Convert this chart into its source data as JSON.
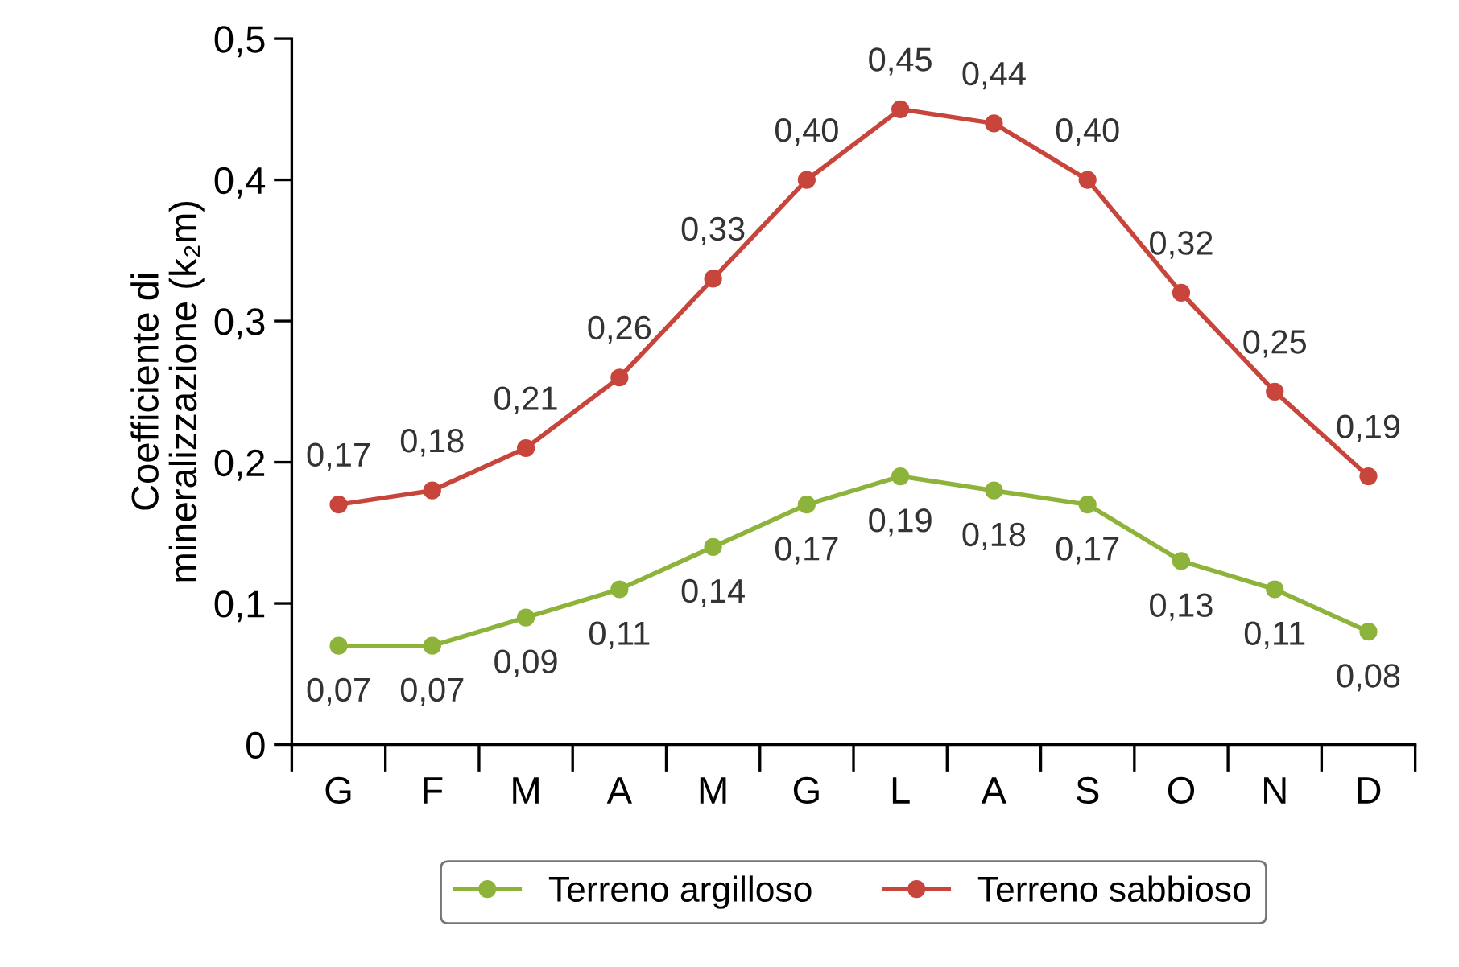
{
  "chart_data": {
    "type": "line",
    "ylabel": "Coefficiente di\nmineralizzazione (k₂m)",
    "categories": [
      "G",
      "F",
      "M",
      "A",
      "M",
      "G",
      "L",
      "A",
      "S",
      "O",
      "N",
      "D"
    ],
    "series": [
      {
        "name": "Terreno argilloso",
        "color": "#8db33a",
        "values": [
          0.07,
          0.07,
          0.09,
          0.11,
          0.14,
          0.17,
          0.19,
          0.18,
          0.17,
          0.13,
          0.11,
          0.08
        ],
        "value_labels": [
          "0,07",
          "0,07",
          "0,09",
          "0,11",
          "0,14",
          "0,17",
          "0,19",
          "0,18",
          "0,17",
          "0,13",
          "0,11",
          "0,08"
        ]
      },
      {
        "name": "Terreno sabbioso",
        "color": "#c8453c",
        "values": [
          0.17,
          0.18,
          0.21,
          0.26,
          0.33,
          0.4,
          0.45,
          0.44,
          0.4,
          0.32,
          0.25,
          0.19
        ],
        "value_labels": [
          "0,17",
          "0,18",
          "0,21",
          "0,26",
          "0,33",
          "0,40",
          "0,45",
          "0,44",
          "0,40",
          "0,32",
          "0,25",
          "0,19"
        ]
      }
    ],
    "ylim": [
      0,
      0.5
    ],
    "yticks": [
      0,
      {
        "value": 0.1,
        "label": "0,1"
      },
      {
        "value": 0.2,
        "label": "0,2"
      },
      {
        "value": 0.3,
        "label": "0,3"
      },
      {
        "value": 0.4,
        "label": "0,4"
      },
      {
        "value": 0.5,
        "label": "0,5"
      }
    ],
    "marker": "circle",
    "line_style": "solid",
    "grid": false,
    "legend": "bottom"
  }
}
